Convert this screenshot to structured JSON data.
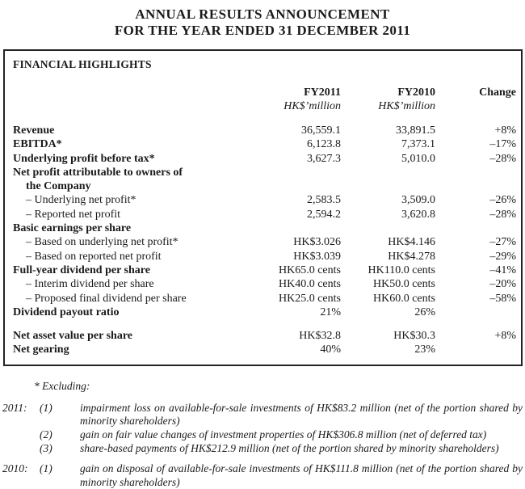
{
  "title": {
    "line1": "ANNUAL RESULTS ANNOUNCEMENT",
    "line2": "FOR THE YEAR ENDED 31 DECEMBER 2011"
  },
  "highlights": {
    "heading": "FINANCIAL HIGHLIGHTS",
    "columns": {
      "fy2011": {
        "label": "FY2011",
        "unit": "HK$’million"
      },
      "fy2010": {
        "label": "FY2010",
        "unit": "HK$’million"
      },
      "change": {
        "label": "Change"
      }
    },
    "rows": [
      {
        "label": "Revenue",
        "bold": true,
        "indent": 0,
        "fy2011": "36,559.1",
        "fy2010": "33,891.5",
        "change": "+8%"
      },
      {
        "label": "EBITDA*",
        "bold": true,
        "indent": 0,
        "fy2011": "6,123.8",
        "fy2010": "7,373.1",
        "change": "–17%"
      },
      {
        "label": "Underlying profit before tax*",
        "bold": true,
        "indent": 0,
        "fy2011": "3,627.3",
        "fy2010": "5,010.0",
        "change": "–28%"
      },
      {
        "label": "Net profit attributable to owners of",
        "bold": true,
        "indent": 0,
        "fy2011": "",
        "fy2010": "",
        "change": ""
      },
      {
        "label": "the Company",
        "bold": true,
        "indent": 1,
        "fy2011": "",
        "fy2010": "",
        "change": ""
      },
      {
        "label": "– Underlying net profit*",
        "bold": false,
        "indent": 1,
        "fy2011": "2,583.5",
        "fy2010": "3,509.0",
        "change": "–26%"
      },
      {
        "label": "– Reported net profit",
        "bold": false,
        "indent": 1,
        "fy2011": "2,594.2",
        "fy2010": "3,620.8",
        "change": "–28%"
      },
      {
        "label": "Basic earnings per share",
        "bold": true,
        "indent": 0,
        "fy2011": "",
        "fy2010": "",
        "change": ""
      },
      {
        "label": "– Based on underlying net profit*",
        "bold": false,
        "indent": 1,
        "fy2011": "HK$3.026",
        "fy2010": "HK$4.146",
        "change": "–27%"
      },
      {
        "label": "– Based on reported net profit",
        "bold": false,
        "indent": 1,
        "fy2011": "HK$3.039",
        "fy2010": "HK$4.278",
        "change": "–29%"
      },
      {
        "label": "Full-year dividend per share",
        "bold": true,
        "indent": 0,
        "fy2011": "HK65.0 cents",
        "fy2010": "HK110.0 cents",
        "change": "–41%"
      },
      {
        "label": "– Interim dividend per share",
        "bold": false,
        "indent": 1,
        "fy2011": "HK40.0 cents",
        "fy2010": "HK50.0 cents",
        "change": "–20%"
      },
      {
        "label": "– Proposed final dividend per share",
        "bold": false,
        "indent": 1,
        "fy2011": "HK25.0 cents",
        "fy2010": "HK60.0 cents",
        "change": "–58%"
      },
      {
        "label": "Dividend payout ratio",
        "bold": true,
        "indent": 0,
        "fy2011": "21%",
        "fy2010": "26%",
        "change": ""
      },
      {
        "spacer": true
      },
      {
        "label": "Net asset value per share",
        "bold": true,
        "indent": 0,
        "fy2011": "HK$32.8",
        "fy2010": "HK$30.3",
        "change": "+8%"
      },
      {
        "label": "Net gearing",
        "bold": true,
        "indent": 0,
        "fy2011": "40%",
        "fy2010": "23%",
        "change": ""
      }
    ]
  },
  "footnotes": {
    "excluding": "* Excluding:",
    "groups": [
      {
        "year": "2011:",
        "items": [
          {
            "num": "(1)",
            "text": "impairment loss on available-for-sale investments of HK$83.2 million (net of the portion shared by minority shareholders)"
          },
          {
            "num": "(2)",
            "text": "gain on fair value changes of investment properties of HK$306.8 million (net of deferred tax)"
          },
          {
            "num": "(3)",
            "text": "share-based payments of HK$212.9 million (net of the portion shared by minority shareholders)"
          }
        ]
      },
      {
        "year": "2010:",
        "items": [
          {
            "num": "(1)",
            "text": "gain on disposal of available-for-sale investments of HK$111.8 million (net of the portion shared by minority shareholders)"
          }
        ]
      }
    ]
  },
  "colors": {
    "ink": "#1b1a1a",
    "border": "#232222",
    "background": "#ffffff"
  }
}
